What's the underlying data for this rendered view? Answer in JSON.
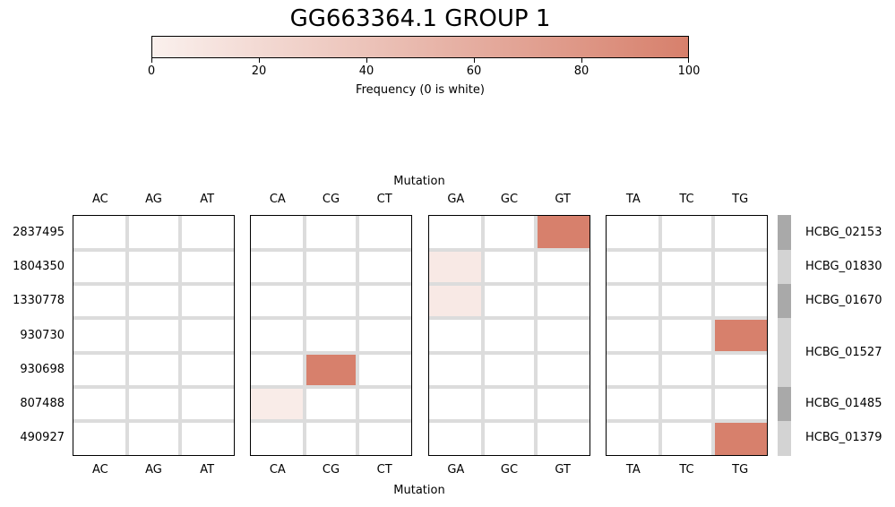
{
  "title": "GG663364.1 GROUP 1",
  "colorbar": {
    "label": "Frequency (0 is white)",
    "ticks": [
      "0",
      "20",
      "40",
      "60",
      "80",
      "100"
    ],
    "min": 0,
    "max": 100,
    "color_low": "#ffffff",
    "color_high": "#d7806c"
  },
  "chart_data": {
    "type": "heatmap",
    "title": "GG663364.1 GROUP 1",
    "xlabel": "Mutation",
    "ylabel": "",
    "colorbar_label": "Frequency (0 is white)",
    "value_range": [
      0,
      100
    ],
    "panels": [
      {
        "columns": [
          "AC",
          "AG",
          "AT"
        ]
      },
      {
        "columns": [
          "CA",
          "CG",
          "CT"
        ]
      },
      {
        "columns": [
          "GA",
          "GC",
          "GT"
        ]
      },
      {
        "columns": [
          "TA",
          "TC",
          "TG"
        ]
      }
    ],
    "rows": [
      "2837495",
      "1804350",
      "1330778",
      "930730",
      "930698",
      "807488",
      "490927"
    ],
    "values": {
      "2837495": {
        "AC": 0,
        "AG": 0,
        "AT": 0,
        "CA": 0,
        "CG": 0,
        "CT": 0,
        "GA": 0,
        "GC": 0,
        "GT": 100,
        "TA": 0,
        "TC": 0,
        "TG": 0
      },
      "1804350": {
        "AC": 0,
        "AG": 0,
        "AT": 0,
        "CA": 0,
        "CG": 0,
        "CT": 0,
        "GA": 6,
        "GC": 0,
        "GT": 0,
        "TA": 0,
        "TC": 0,
        "TG": 0
      },
      "1330778": {
        "AC": 0,
        "AG": 0,
        "AT": 0,
        "CA": 0,
        "CG": 0,
        "CT": 0,
        "GA": 6,
        "GC": 0,
        "GT": 0,
        "TA": 0,
        "TC": 0,
        "TG": 0
      },
      "930730": {
        "AC": 0,
        "AG": 0,
        "AT": 0,
        "CA": 0,
        "CG": 0,
        "CT": 0,
        "GA": 0,
        "GC": 0,
        "GT": 0,
        "TA": 0,
        "TC": 0,
        "TG": 100
      },
      "930698": {
        "AC": 0,
        "AG": 0,
        "AT": 0,
        "CA": 0,
        "CG": 100,
        "CT": 0,
        "GA": 0,
        "GC": 0,
        "GT": 0,
        "TA": 0,
        "TC": 0,
        "TG": 0
      },
      "807488": {
        "AC": 0,
        "AG": 0,
        "AT": 0,
        "CA": 4,
        "CG": 0,
        "CT": 0,
        "GA": 0,
        "GC": 0,
        "GT": 0,
        "TA": 0,
        "TC": 0,
        "TG": 0
      },
      "490927": {
        "AC": 0,
        "AG": 0,
        "AT": 0,
        "CA": 0,
        "CG": 0,
        "CT": 0,
        "GA": 0,
        "GC": 0,
        "GT": 0,
        "TA": 0,
        "TC": 0,
        "TG": 100
      }
    },
    "gene_annotations": [
      {
        "gene": "HCBG_02153",
        "rows": [
          "2837495"
        ],
        "shade": "#a9a9a9"
      },
      {
        "gene": "HCBG_01830",
        "rows": [
          "1804350"
        ],
        "shade": "#d3d3d3"
      },
      {
        "gene": "HCBG_01670",
        "rows": [
          "1330778"
        ],
        "shade": "#a9a9a9"
      },
      {
        "gene": "HCBG_01527",
        "rows": [
          "930730",
          "930698"
        ],
        "shade": "#d3d3d3"
      },
      {
        "gene": "HCBG_01485",
        "rows": [
          "807488"
        ],
        "shade": "#a9a9a9"
      },
      {
        "gene": "HCBG_01379",
        "rows": [
          "490927"
        ],
        "shade": "#d3d3d3"
      }
    ]
  }
}
